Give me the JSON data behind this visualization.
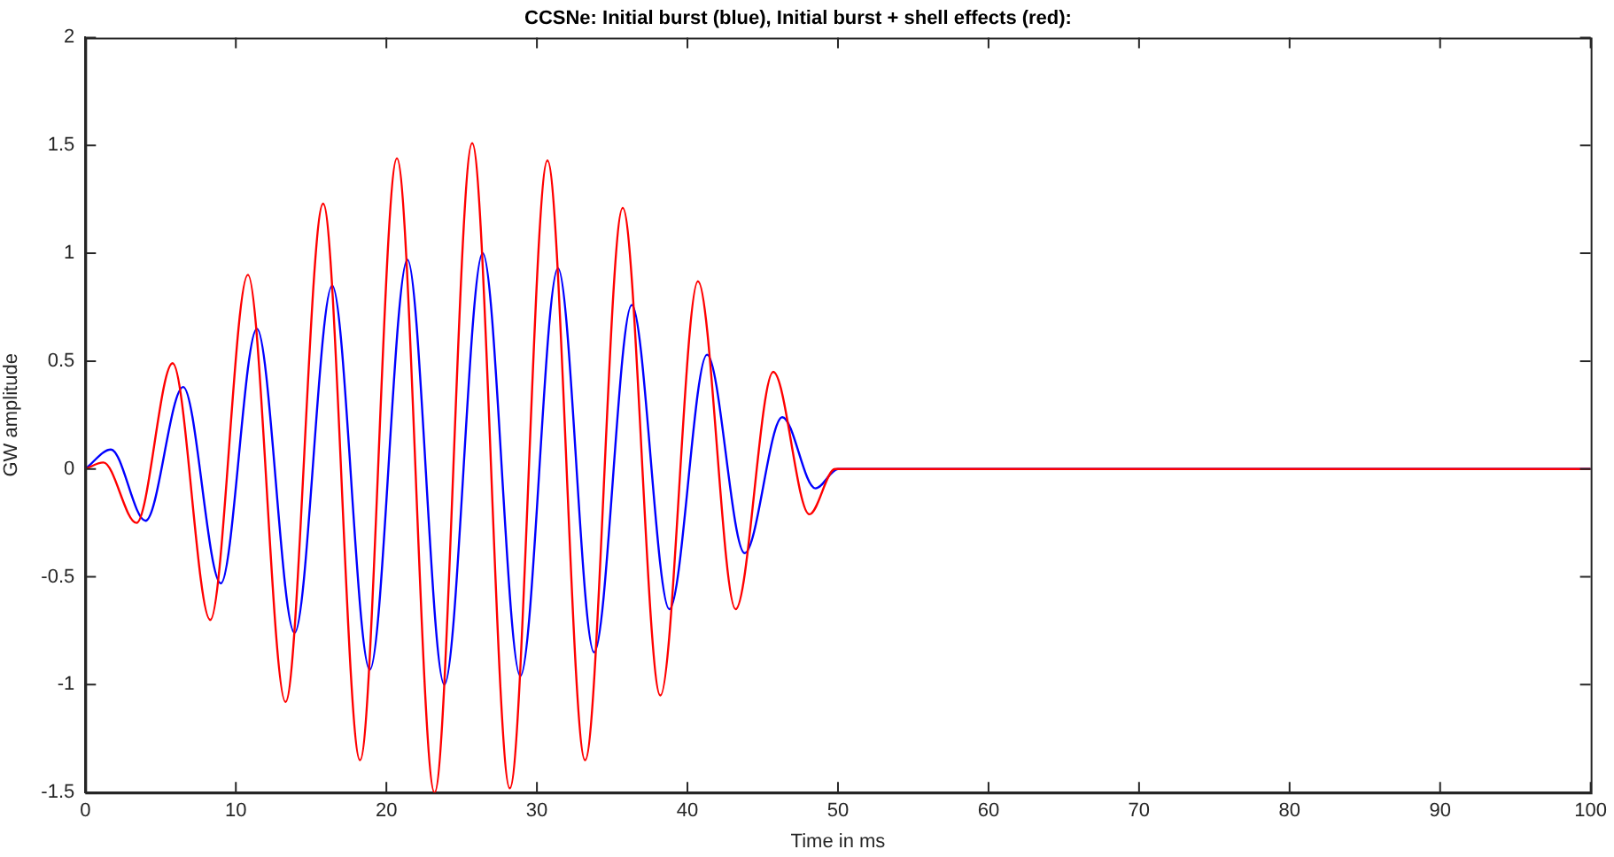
{
  "chart_data": {
    "type": "line",
    "title": "CCSNe: Initial burst (blue), Initial burst + shell effects (red):",
    "xlabel": "Time in ms",
    "ylabel": "GW amplitude",
    "xlim": [
      0,
      100
    ],
    "xticks": [
      0,
      10,
      20,
      30,
      40,
      50,
      60,
      70,
      80,
      90,
      100
    ],
    "ylim": [
      -1.5,
      2
    ],
    "yticks": [
      -1.5,
      -1,
      -0.5,
      0,
      0.5,
      1,
      1.5,
      2
    ],
    "grid": false,
    "legend": false,
    "marker": "none",
    "line_style": "solid",
    "series": [
      {
        "color": "#ff0000",
        "x": [
          0,
          1.2,
          3.4,
          5.8,
          8.3,
          10.8,
          13.3,
          15.8,
          18.25,
          20.7,
          23.2,
          25.7,
          28.2,
          30.7,
          33.2,
          35.7,
          38.2,
          40.7,
          43.2,
          45.7,
          48.1,
          49.8,
          100
        ],
        "values": [
          0,
          0.03,
          -0.25,
          0.49,
          -0.7,
          0.9,
          -1.08,
          1.23,
          -1.35,
          1.44,
          -1.5,
          1.51,
          -1.48,
          1.43,
          -1.35,
          1.21,
          -1.05,
          0.87,
          -0.65,
          0.45,
          -0.21,
          0,
          0
        ]
      },
      {
        "color": "#0000ff",
        "x": [
          0,
          1.7,
          4,
          6.5,
          9,
          11.4,
          13.9,
          16.4,
          18.9,
          21.4,
          23.85,
          26.4,
          28.9,
          31.4,
          33.8,
          36.3,
          38.8,
          41.3,
          43.8,
          46.3,
          48.5,
          50,
          100
        ],
        "values": [
          0,
          0.09,
          -0.24,
          0.38,
          -0.53,
          0.65,
          -0.76,
          0.85,
          -0.93,
          0.97,
          -1,
          1,
          -0.96,
          0.93,
          -0.85,
          0.76,
          -0.65,
          0.53,
          -0.39,
          0.24,
          -0.09,
          0,
          0
        ]
      }
    ]
  }
}
